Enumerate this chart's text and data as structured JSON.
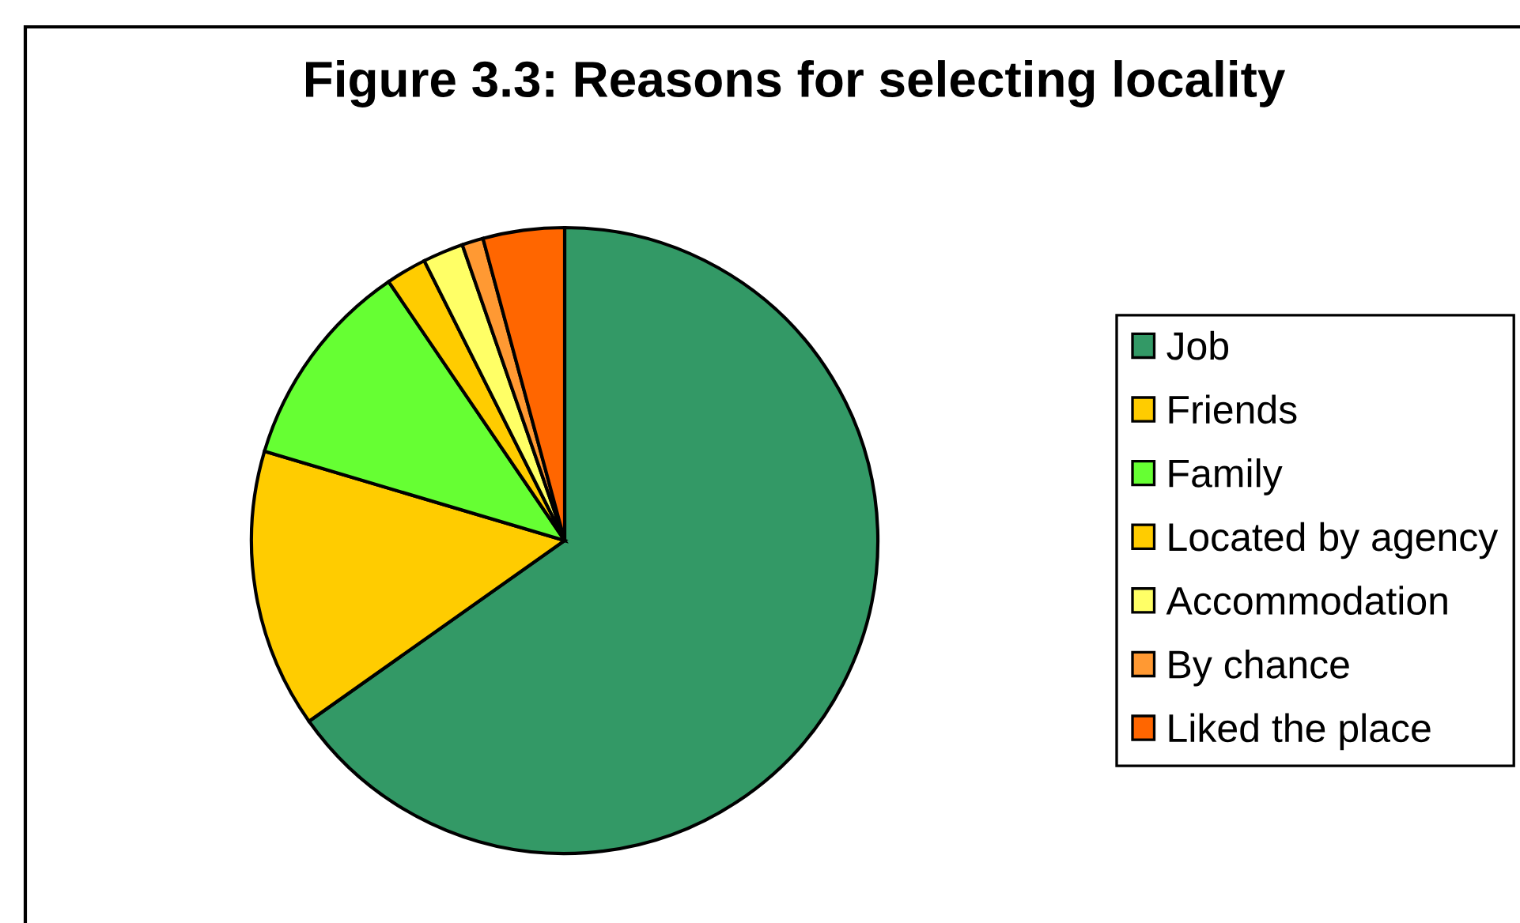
{
  "chart_data": {
    "type": "pie",
    "title": "Figure 3.3: Reasons for selecting locality",
    "categories": [
      "Job",
      "Friends",
      "Family",
      "Located by agency",
      "Accommodation",
      "By chance",
      "Liked the place"
    ],
    "values": [
      65.2,
      14.4,
      10.9,
      2.1,
      2.1,
      1.1,
      4.2
    ],
    "colors": [
      "#339966",
      "#ffcc00",
      "#66ff33",
      "#ffcc00",
      "#ffff66",
      "#ff9933",
      "#ff6600"
    ],
    "legend": "right"
  }
}
